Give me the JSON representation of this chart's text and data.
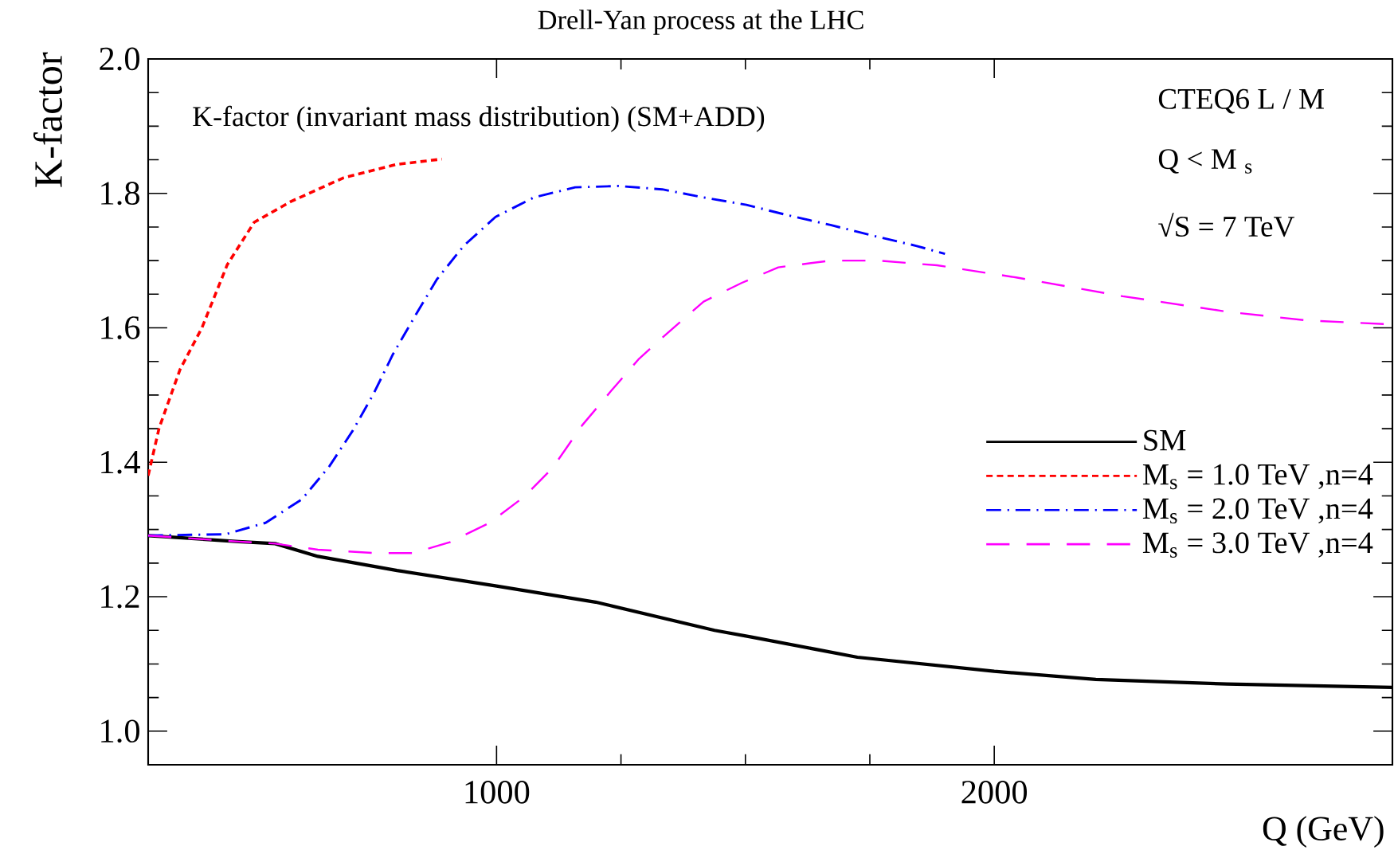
{
  "chart_data": {
    "type": "line",
    "title": "Drell-Yan process at the LHC",
    "xlabel": "Q (GeV)",
    "ylabel": "K-factor",
    "annotations": [
      "K-factor (invariant mass distribution) (SM+ADD)",
      "CTEQ6 L / M",
      "Q < M $_{s}$",
      "√S = 7 TeV"
    ],
    "xlim": [
      300,
      2800
    ],
    "ylim": [
      0.95,
      2.0
    ],
    "xticks": [
      1000,
      2000
    ],
    "yticks": [
      {
        "value": 1.0,
        "label": "1.0"
      },
      {
        "value": 1.2,
        "label": "1.2"
      },
      {
        "value": 1.4,
        "label": "1.4"
      },
      {
        "value": 1.6,
        "label": "1.6"
      },
      {
        "value": 1.8,
        "label": "1.8"
      },
      {
        "value": 2.0,
        "label": "2.0"
      }
    ],
    "legend": "right",
    "marker": "none",
    "series": [
      {
        "name": "SM",
        "color": "#000000",
        "line_style": "solid",
        "x": [
          300,
          482,
          555,
          641,
          800,
          1000,
          1199,
          1438,
          1512,
          1725,
          2000,
          2204,
          2468,
          2800
        ],
        "values": [
          1.291,
          1.282,
          1.279,
          1.26,
          1.239,
          1.216,
          1.192,
          1.15,
          1.14,
          1.11,
          1.089,
          1.077,
          1.07,
          1.065
        ]
      },
      {
        "name": "M$_{s}$ = 1.0 TeV ,n=4",
        "color": "#ff0000",
        "line_style": "dotted",
        "x": [
          300,
          322,
          364,
          408,
          459,
          513,
          587,
          692,
          798,
          890
        ],
        "values": [
          1.38,
          1.451,
          1.538,
          1.6,
          1.694,
          1.757,
          1.788,
          1.823,
          1.843,
          1.851
        ]
      },
      {
        "name": "M$_{s}$ = 2.0 TeV ,n=4",
        "color": "#0000ff",
        "line_style": "dashdot",
        "x": [
          300,
          456,
          536,
          609,
          664,
          711,
          753,
          792,
          835,
          880,
          934,
          998,
          1075,
          1158,
          1244,
          1333,
          1416,
          1502,
          1588,
          1671,
          1757,
          1843,
          1901
        ],
        "values": [
          1.291,
          1.293,
          1.31,
          1.345,
          1.394,
          1.447,
          1.502,
          1.561,
          1.616,
          1.672,
          1.722,
          1.765,
          1.794,
          1.809,
          1.811,
          1.806,
          1.794,
          1.783,
          1.767,
          1.753,
          1.737,
          1.722,
          1.71
        ]
      },
      {
        "name": "M$_{s}$ = 3.0 TeV ,n=4",
        "color": "#ff00ff",
        "line_style": "dashed",
        "x": [
          300,
          482,
          555,
          641,
          753,
          833,
          906,
          986,
          1056,
          1113,
          1172,
          1230,
          1285,
          1343,
          1416,
          1493,
          1566,
          1671,
          1767,
          1885,
          2044,
          2258,
          2468,
          2628,
          2800
        ],
        "values": [
          1.291,
          1.282,
          1.279,
          1.27,
          1.265,
          1.265,
          1.281,
          1.31,
          1.349,
          1.392,
          1.455,
          1.506,
          1.553,
          1.592,
          1.639,
          1.667,
          1.69,
          1.7,
          1.7,
          1.693,
          1.675,
          1.647,
          1.624,
          1.611,
          1.605
        ]
      }
    ]
  }
}
